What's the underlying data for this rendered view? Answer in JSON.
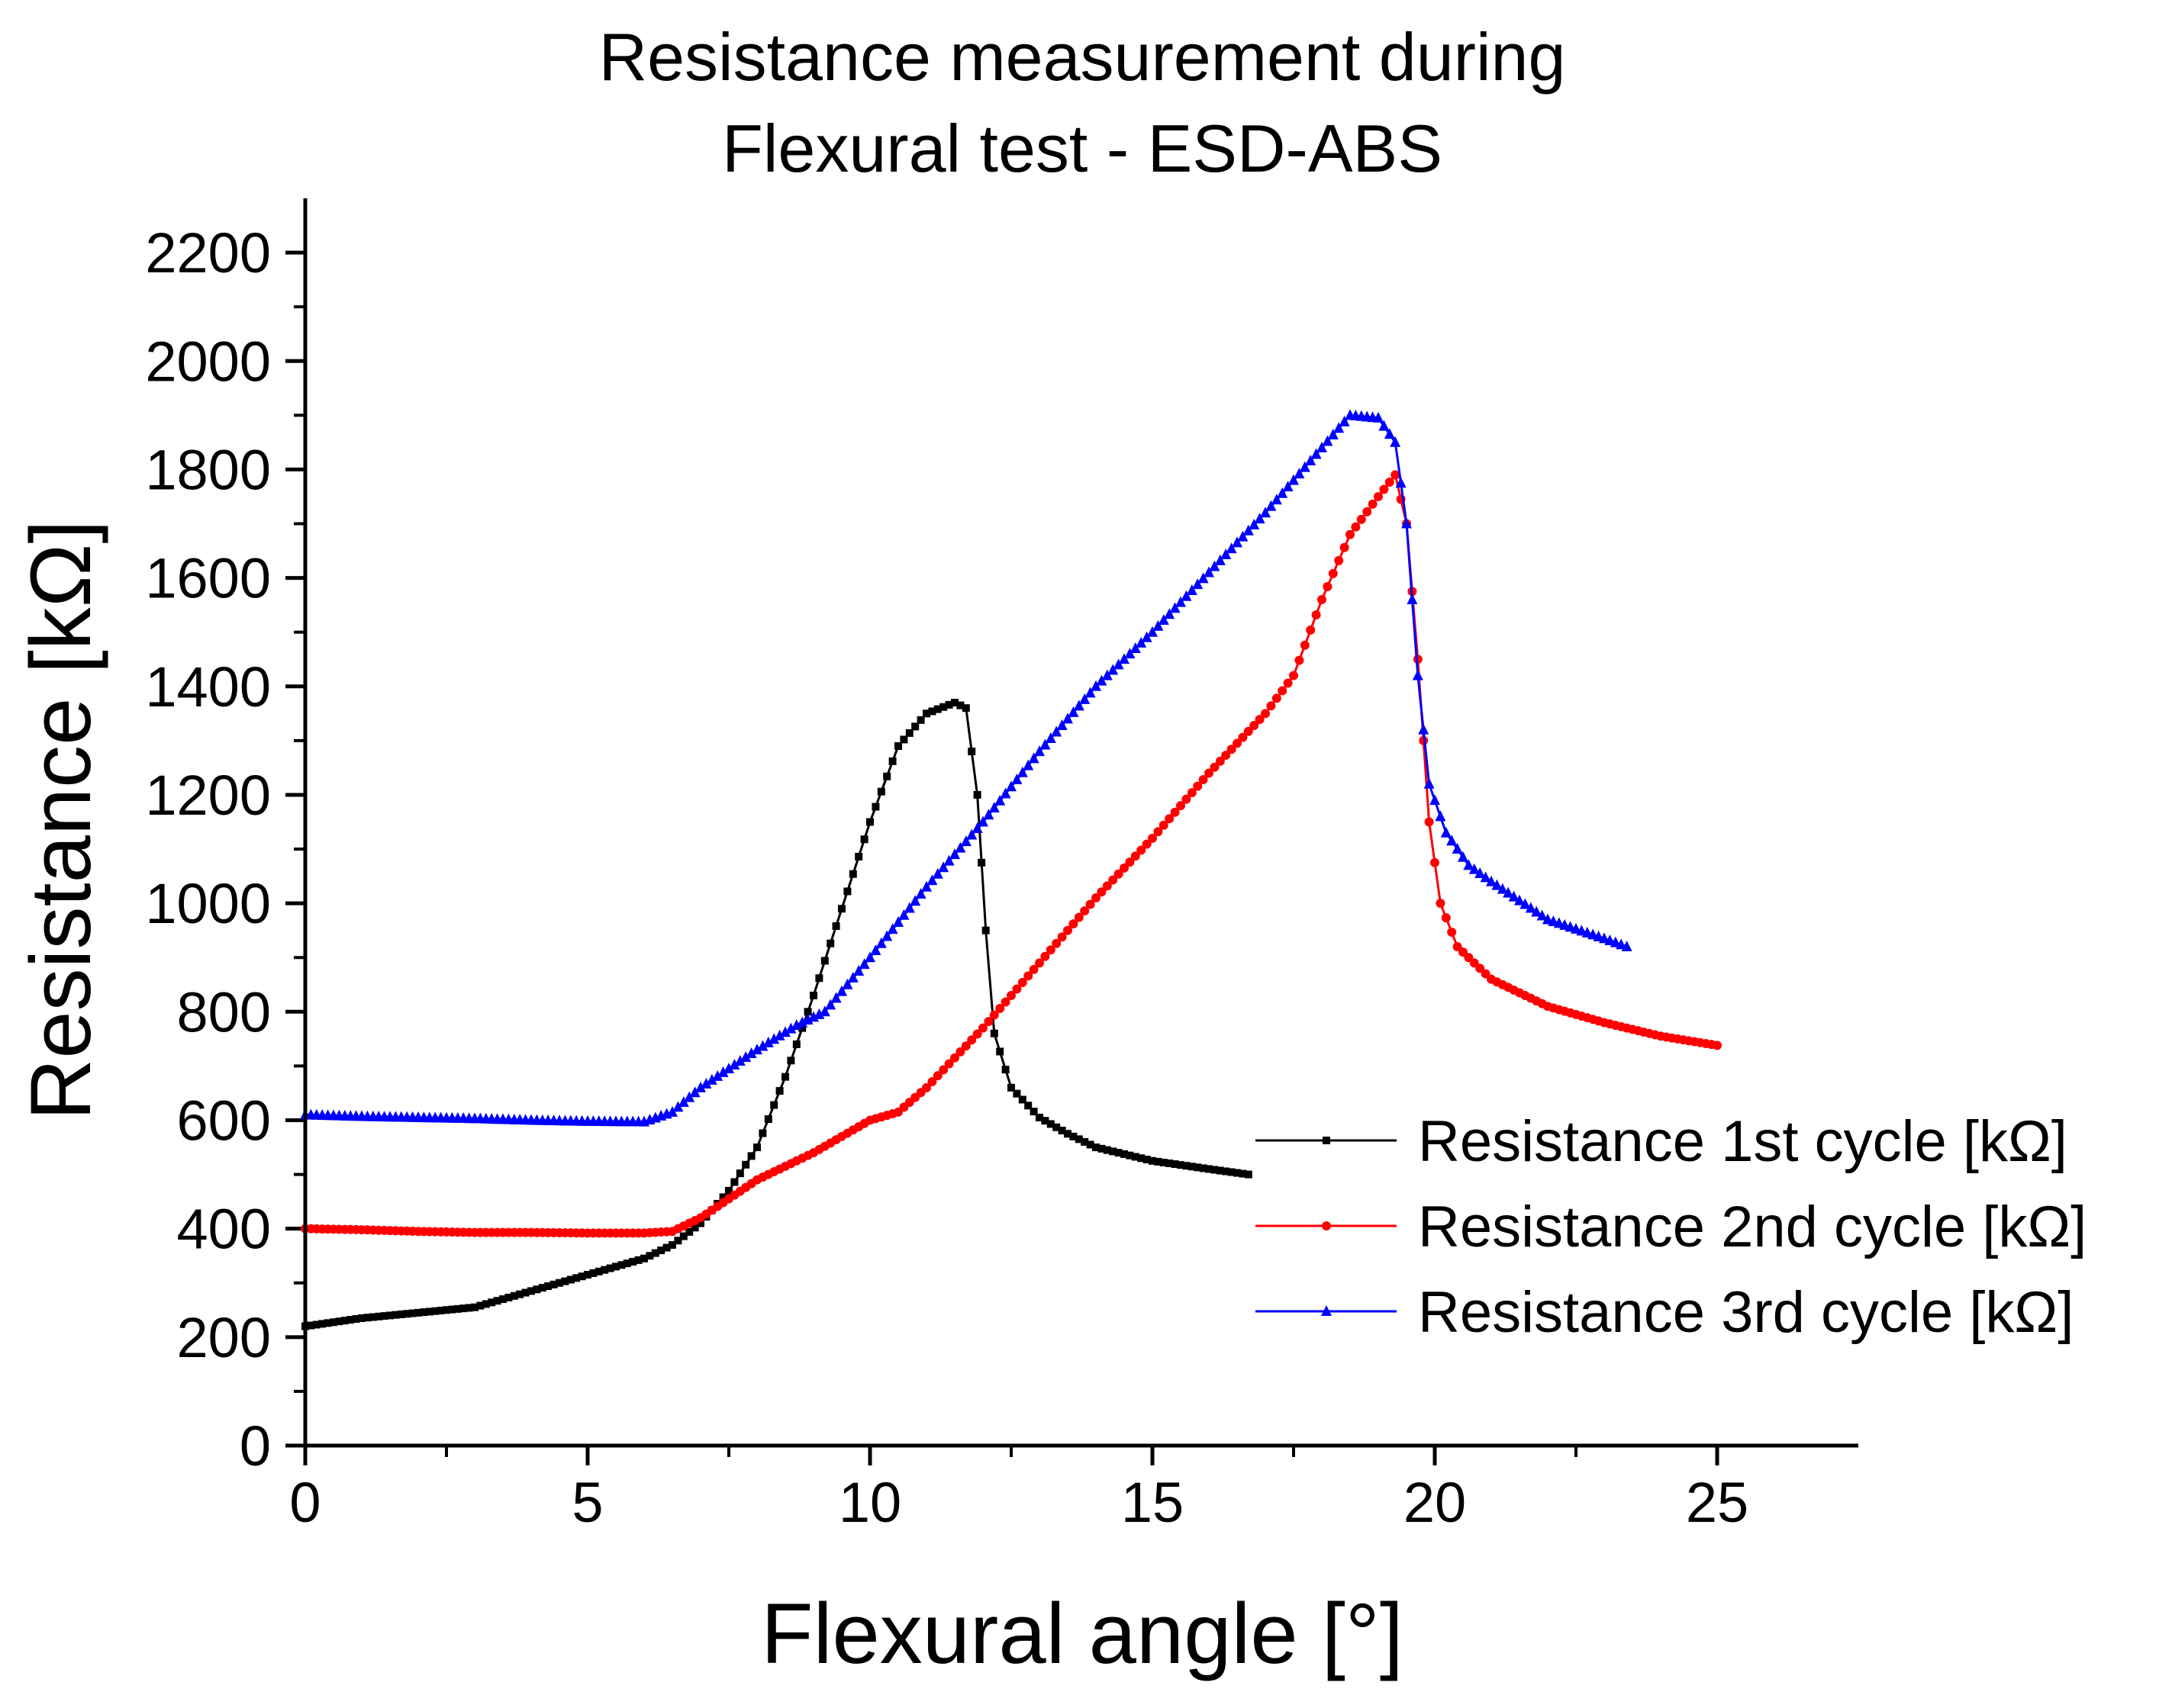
{
  "chart_data": {
    "type": "line",
    "title_lines": [
      "Resistance measurement during",
      "Flexural test - ESD-ABS"
    ],
    "xlabel": "Flexural angle [°]",
    "ylabel": "Resistance [kΩ]",
    "xlim": [
      0,
      27.5
    ],
    "ylim": [
      0,
      2300
    ],
    "xticks": [
      0,
      5,
      10,
      15,
      20,
      25
    ],
    "yticks": [
      0,
      200,
      400,
      600,
      800,
      1000,
      1200,
      1400,
      1600,
      1800,
      2000,
      2200
    ],
    "legend_position": "center-right",
    "series": [
      {
        "name": "Resistance 1st cycle [kΩ]",
        "color": "#000000",
        "marker": "square",
        "points": [
          [
            0,
            220
          ],
          [
            1,
            235
          ],
          [
            2,
            245
          ],
          [
            3,
            255
          ],
          [
            4,
            285
          ],
          [
            5,
            315
          ],
          [
            6,
            345
          ],
          [
            6.5,
            370
          ],
          [
            7,
            410
          ],
          [
            7.5,
            470
          ],
          [
            8,
            550
          ],
          [
            8.5,
            680
          ],
          [
            9,
            830
          ],
          [
            9.5,
            990
          ],
          [
            10,
            1150
          ],
          [
            10.5,
            1290
          ],
          [
            11,
            1350
          ],
          [
            11.5,
            1370
          ],
          [
            11.7,
            1360
          ],
          [
            11.9,
            1200
          ],
          [
            12.05,
            950
          ],
          [
            12.2,
            760
          ],
          [
            12.5,
            660
          ],
          [
            13,
            605
          ],
          [
            13.5,
            575
          ],
          [
            14,
            550
          ],
          [
            15,
            525
          ],
          [
            16,
            510
          ],
          [
            16.7,
            500
          ]
        ]
      },
      {
        "name": "Resistance 2nd cycle [kΩ]",
        "color": "#ff0000",
        "marker": "circle",
        "points": [
          [
            0,
            400
          ],
          [
            1,
            398
          ],
          [
            2,
            395
          ],
          [
            3,
            393
          ],
          [
            4,
            393
          ],
          [
            5,
            392
          ],
          [
            6,
            392
          ],
          [
            6.5,
            395
          ],
          [
            7,
            420
          ],
          [
            7.5,
            455
          ],
          [
            8,
            490
          ],
          [
            9,
            540
          ],
          [
            10,
            600
          ],
          [
            10.5,
            615
          ],
          [
            11,
            660
          ],
          [
            12,
            770
          ],
          [
            13,
            890
          ],
          [
            14,
            1010
          ],
          [
            15,
            1120
          ],
          [
            16,
            1240
          ],
          [
            17,
            1350
          ],
          [
            17.5,
            1420
          ],
          [
            18,
            1560
          ],
          [
            18.5,
            1680
          ],
          [
            19,
            1750
          ],
          [
            19.3,
            1790
          ],
          [
            19.5,
            1700
          ],
          [
            19.7,
            1450
          ],
          [
            19.9,
            1150
          ],
          [
            20.1,
            1000
          ],
          [
            20.4,
            920
          ],
          [
            21,
            860
          ],
          [
            22,
            810
          ],
          [
            23,
            780
          ],
          [
            24,
            755
          ],
          [
            25,
            738
          ]
        ]
      },
      {
        "name": "Resistance 3rd cycle [kΩ]",
        "color": "#0000ff",
        "marker": "triangle",
        "points": [
          [
            0,
            610
          ],
          [
            1,
            607
          ],
          [
            2,
            605
          ],
          [
            3,
            603
          ],
          [
            4,
            600
          ],
          [
            5,
            598
          ],
          [
            6,
            597
          ],
          [
            6.5,
            615
          ],
          [
            7,
            660
          ],
          [
            8,
            730
          ],
          [
            8.7,
            775
          ],
          [
            9.2,
            800
          ],
          [
            10,
            900
          ],
          [
            11,
            1030
          ],
          [
            12,
            1150
          ],
          [
            13,
            1280
          ],
          [
            14,
            1400
          ],
          [
            15,
            1500
          ],
          [
            16,
            1610
          ],
          [
            17,
            1720
          ],
          [
            18,
            1840
          ],
          [
            18.5,
            1900
          ],
          [
            19,
            1895
          ],
          [
            19.3,
            1850
          ],
          [
            19.5,
            1700
          ],
          [
            19.7,
            1420
          ],
          [
            19.9,
            1220
          ],
          [
            20.2,
            1130
          ],
          [
            20.6,
            1070
          ],
          [
            21,
            1040
          ],
          [
            22,
            970
          ],
          [
            23,
            935
          ],
          [
            23.4,
            920
          ]
        ]
      }
    ]
  }
}
